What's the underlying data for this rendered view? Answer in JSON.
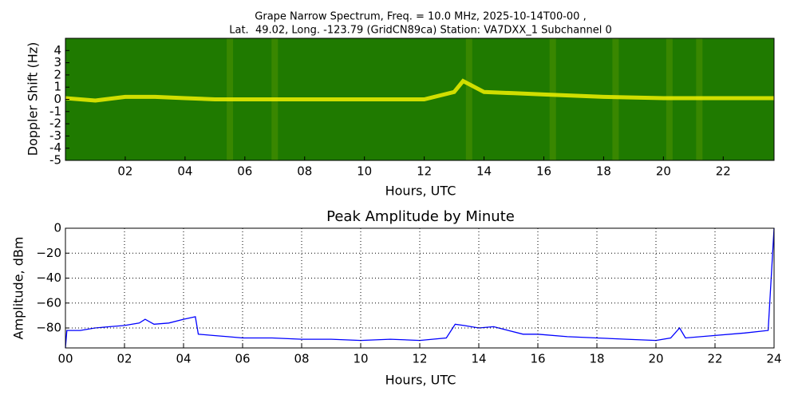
{
  "chart_data": [
    {
      "type": "spectrogram",
      "title": [
        "Grape Narrow Spectrum, Freq. = 10.0 MHz, 2025-10-14T00-00 ,",
        "Lat.  49.02, Long. -123.79 (GridCN89ca) Station: VA7DXX_1 Subchannel 0"
      ],
      "xlabel": "Hours, UTC",
      "ylabel": "Doppler Shift (Hz)",
      "xlim": [
        0,
        23.7
      ],
      "ylim": [
        -5,
        5
      ],
      "xticks": [
        {
          "value": 2,
          "label": "02"
        },
        {
          "value": 4,
          "label": "04"
        },
        {
          "value": 6,
          "label": "06"
        },
        {
          "value": 8,
          "label": "08"
        },
        10,
        12,
        14,
        16,
        18,
        20,
        22
      ],
      "yticks": [
        -5,
        -4,
        -3,
        -2,
        -1,
        0,
        1,
        2,
        3,
        4
      ],
      "background_color": "#1f7a00",
      "series": [
        {
          "color": "#f0f000",
          "x": [
            0,
            1,
            2,
            3,
            4,
            5,
            6,
            8,
            10,
            12,
            13,
            13.3,
            14,
            15,
            16,
            17,
            18,
            20,
            22,
            23.7
          ],
          "values": [
            0.1,
            -0.1,
            0.2,
            0.2,
            0.1,
            0,
            0,
            0,
            0,
            0,
            0.6,
            1.5,
            0.6,
            0.5,
            0.4,
            0.3,
            0.2,
            0.1,
            0.1,
            0.1
          ]
        }
      ]
    },
    {
      "type": "line",
      "title": "Peak Amplitude by Minute",
      "xlabel": "Hours, UTC",
      "ylabel": "Amplitude, dBm",
      "xlim": [
        0,
        24
      ],
      "ylim": [
        -96,
        0
      ],
      "xticks": [
        {
          "value": 0,
          "label": "00"
        },
        {
          "value": 2,
          "label": "02"
        },
        {
          "value": 4,
          "label": "04"
        },
        {
          "value": 6,
          "label": "06"
        },
        {
          "value": 8,
          "label": "08"
        },
        10,
        12,
        14,
        16,
        18,
        20,
        22,
        24
      ],
      "yticks": [
        {
          "value": -80,
          "label": "−80"
        },
        {
          "value": -60,
          "label": "−60"
        },
        {
          "value": -40,
          "label": "−40"
        },
        {
          "value": -20,
          "label": "−20"
        },
        0
      ],
      "grid": true,
      "x": [
        0,
        0.05,
        0.5,
        1,
        1.5,
        2,
        2.5,
        2.7,
        3,
        3.5,
        4,
        4.4,
        4.5,
        5,
        5.5,
        6,
        7,
        8,
        9,
        10,
        11,
        12,
        12.9,
        13.2,
        13.5,
        14,
        14.5,
        15,
        15.5,
        16,
        17,
        18,
        19,
        20,
        20.5,
        20.8,
        21,
        22,
        23,
        23.8,
        24
      ],
      "series": [
        {
          "color": "#0000ff",
          "values": [
            -96,
            -82,
            -82,
            -80,
            -79,
            -78,
            -76,
            -73,
            -77,
            -76,
            -73,
            -71,
            -85,
            -86,
            -87,
            -88,
            -88,
            -89,
            -89,
            -90,
            -89,
            -90,
            -88,
            -77,
            -78,
            -80,
            -79,
            -82,
            -85,
            -85,
            -87,
            -88,
            -89,
            -90,
            -88,
            -80,
            -88,
            -86,
            -84,
            -82,
            0
          ]
        }
      ]
    }
  ]
}
